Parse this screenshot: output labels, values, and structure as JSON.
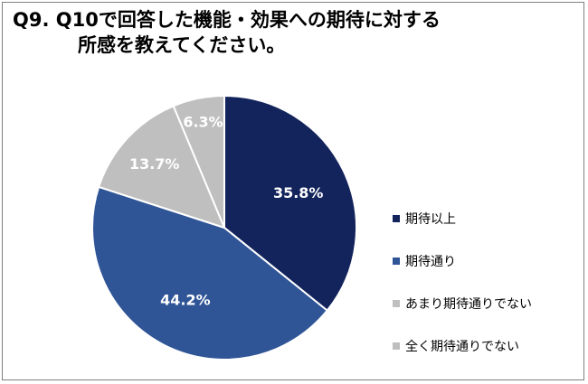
{
  "title": {
    "line1": "Q9. Q10で回答した機能・効果への期待に対する",
    "line2": "所感を教えてください。"
  },
  "chart_data": {
    "type": "pie",
    "title": "Q9. Q10で回答した機能・効果への期待に対する 所感を教えてください。",
    "start_angle_deg": 0,
    "direction": "clockwise",
    "labels": [
      "期待以上",
      "期待通り",
      "あまり期待通りでない",
      "全く期待通りでない"
    ],
    "values": [
      35.8,
      44.2,
      13.7,
      6.3
    ],
    "value_labels": [
      "35.8%",
      "44.2%",
      "13.7%",
      "6.3%"
    ],
    "colors": [
      "#13245c",
      "#2f5597",
      "#bfbfbf",
      "#bfbfbf"
    ],
    "label_colors": [
      "#ffffff",
      "#ffffff",
      "#ffffff",
      "#ffffff"
    ],
    "legend_position": "right",
    "slice_border_color": "#ffffff"
  }
}
